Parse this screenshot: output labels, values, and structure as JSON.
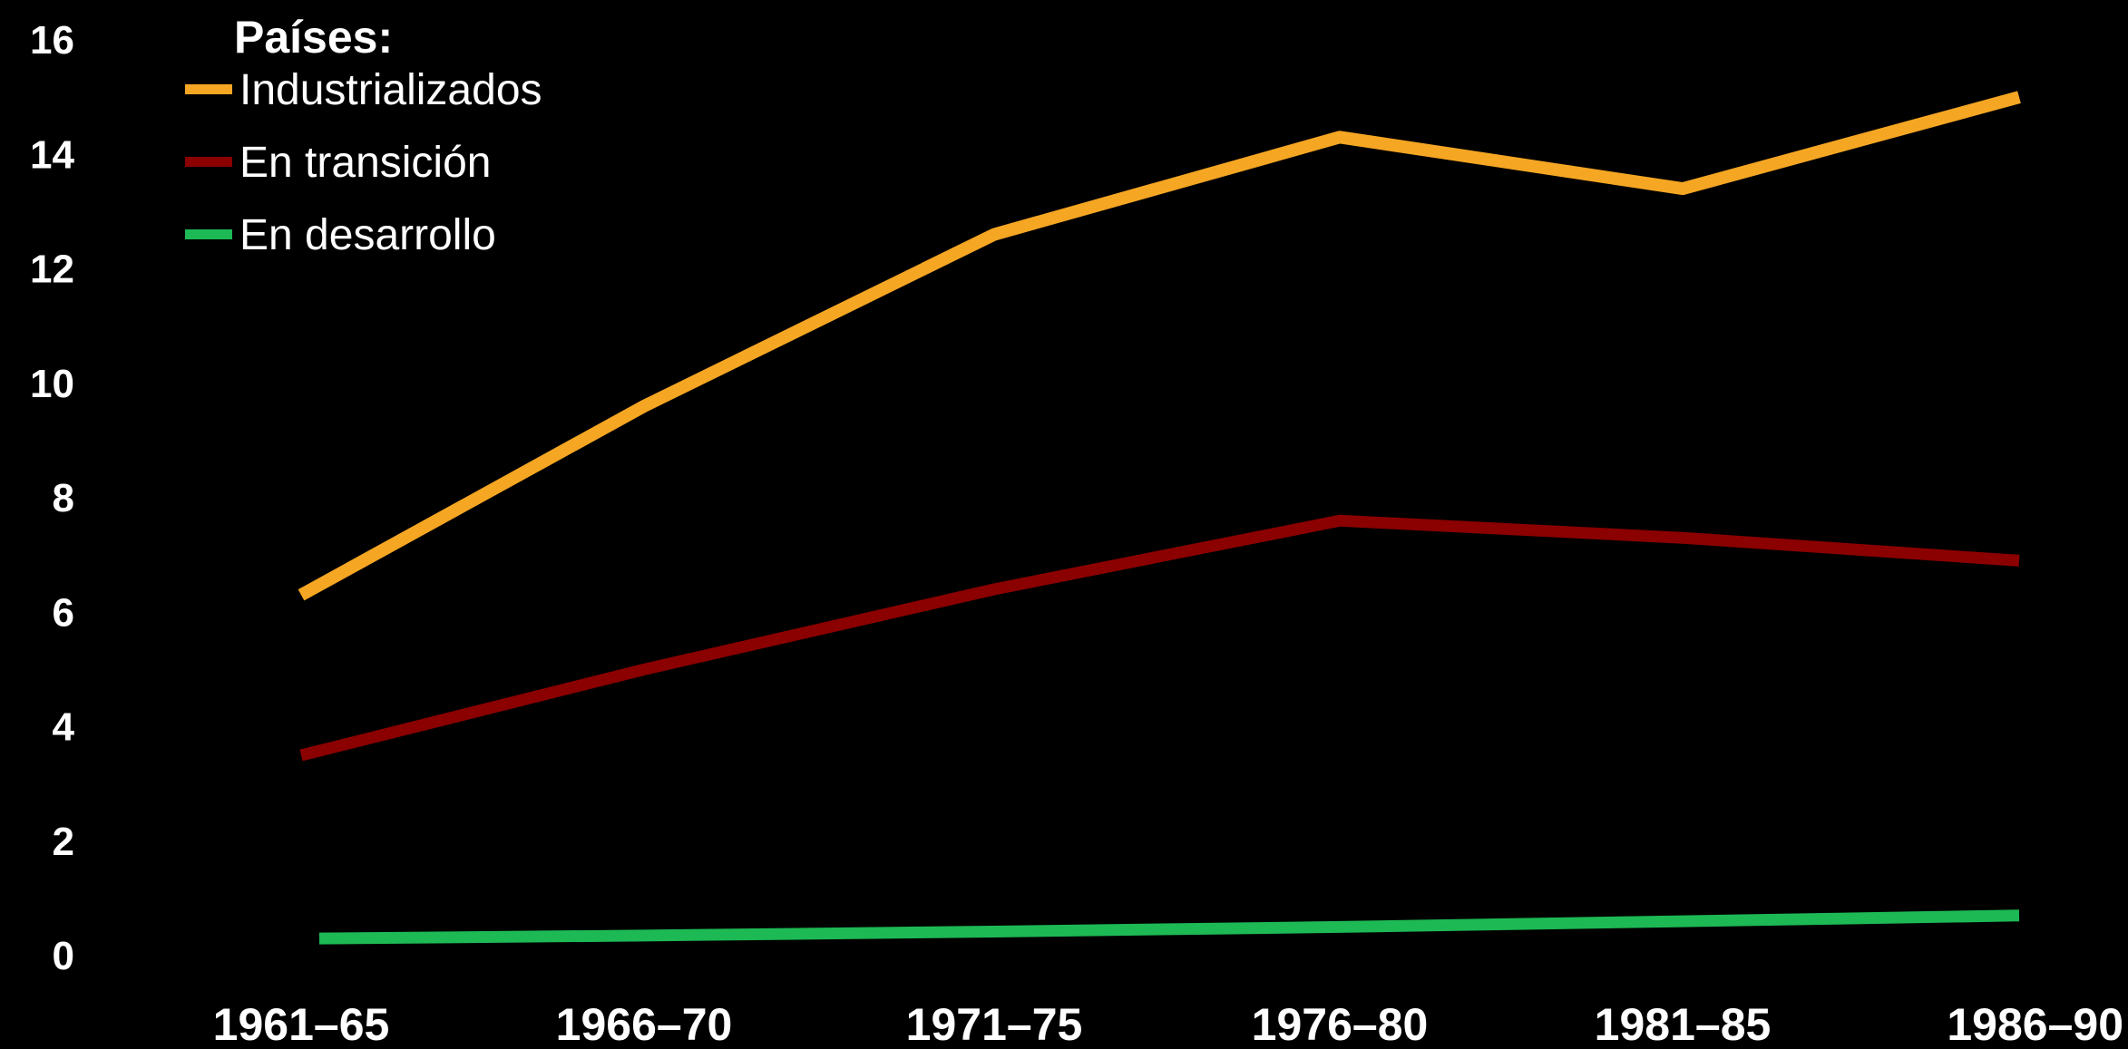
{
  "chart_data": {
    "type": "line",
    "title": "",
    "xlabel": "",
    "ylabel": "",
    "categories": [
      "1961–65",
      "1966–70",
      "1971–75",
      "1976–80",
      "1981–85",
      "1986–90"
    ],
    "ylim": [
      0,
      16
    ],
    "yticks": [
      "0",
      "2",
      "4",
      "6",
      "8",
      "10",
      "12",
      "14",
      "16"
    ],
    "grid": false,
    "legend": {
      "title": "Países:",
      "placement": "top-left"
    },
    "series": [
      {
        "name": "Industrializados",
        "color": "#f5a623",
        "values": [
          6.3,
          9.6,
          12.6,
          14.3,
          13.4,
          15.0
        ]
      },
      {
        "name": "En transición",
        "color": "#8b0000",
        "values": [
          3.5,
          5.0,
          6.4,
          7.6,
          7.3,
          6.9
        ]
      },
      {
        "name": "En desarrollo",
        "color": "#1db954",
        "values": [
          0.3,
          0.35,
          0.42,
          0.5,
          0.6,
          0.7
        ]
      }
    ]
  }
}
